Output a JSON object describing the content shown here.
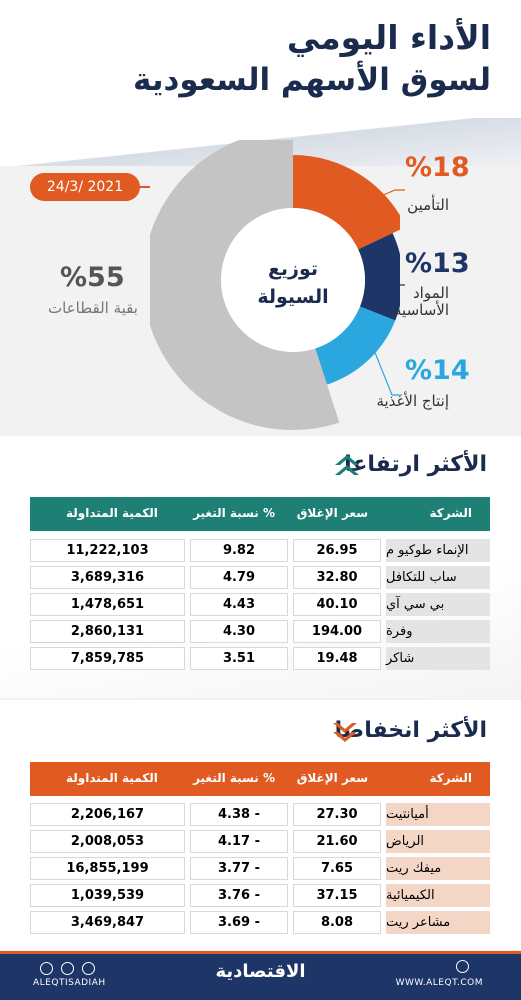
{
  "header": {
    "title_line1": "الأداء اليومي",
    "title_line2": "لسوق الأسهم السعودية"
  },
  "date": "24/3/ 2021",
  "liquidity": {
    "center_line1": "توزيع",
    "center_line2": "السيولة",
    "segments": [
      {
        "label": "التأمين",
        "percent": 18,
        "percent_text": "%18",
        "color": "#e05a22"
      },
      {
        "label_line1": "المواد",
        "label_line2": "الأساسية",
        "percent": 13,
        "percent_text": "%13",
        "color": "#1e3567"
      },
      {
        "label": "إنتاج الأغذية",
        "percent": 14,
        "percent_text": "%14",
        "color": "#2aa7df"
      },
      {
        "label": "بقية القطاعات",
        "percent": 55,
        "percent_text": "%55",
        "color": "#c4c4c4"
      }
    ]
  },
  "columns": {
    "company": "الشركة",
    "close": "سعر الإغلاق",
    "change": "نسبة التغير %",
    "qty": "الكمية المتداولة"
  },
  "gainers": {
    "title": "الأكثر ارتفاعا",
    "header_color": "#1e7f74",
    "rows": [
      {
        "company": "الإنماء طوكيو م",
        "close": "26.95",
        "change": "9.82",
        "qty": "11,222,103"
      },
      {
        "company": "ساب للتكافل",
        "close": "32.80",
        "change": "4.79",
        "qty": "3,689,316"
      },
      {
        "company": "بي سي آي",
        "close": "40.10",
        "change": "4.43",
        "qty": "1,478,651"
      },
      {
        "company": "وفرة",
        "close": "194.00",
        "change": "4.30",
        "qty": "2,860,131"
      },
      {
        "company": "شاكر",
        "close": "19.48",
        "change": "3.51",
        "qty": "7,859,785"
      }
    ]
  },
  "losers": {
    "title": "الأكثر انخفاضا",
    "header_color": "#e05a22",
    "rows": [
      {
        "company": "أميانتيت",
        "close": "27.30",
        "change": "4.38 -",
        "qty": "2,206,167"
      },
      {
        "company": "الرياض",
        "close": "21.60",
        "change": "4.17 -",
        "qty": "2,008,053"
      },
      {
        "company": "ميفك ريت",
        "close": "7.65",
        "change": "3.77 -",
        "qty": "16,855,199"
      },
      {
        "company": "الكيميائية",
        "close": "37.15",
        "change": "3.76 -",
        "qty": "1,039,539"
      },
      {
        "company": "مشاعر ريت",
        "close": "8.08",
        "change": "3.69 -",
        "qty": "3,469,847"
      }
    ]
  },
  "footer": {
    "handle": "ALEQTISADIAH",
    "brand": "الاقتصادية",
    "website": "WWW.ALEQT.COM"
  },
  "icons": [
    "instagram-icon",
    "facebook-icon",
    "twitter-icon",
    "globe-icon",
    "double-up-arrow-icon",
    "double-down-arrow-icon"
  ]
}
